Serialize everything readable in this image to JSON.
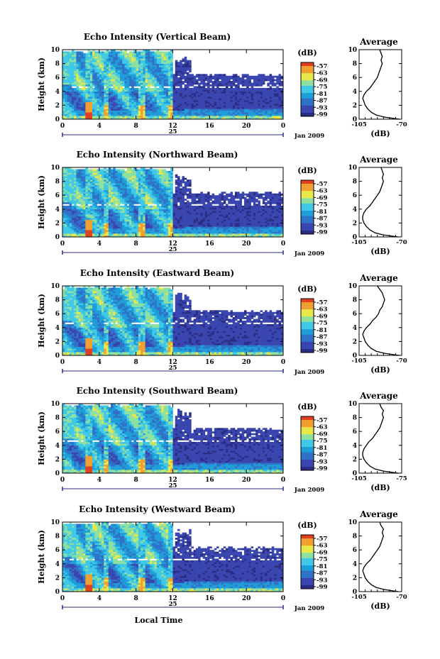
{
  "chart_data": [
    {
      "type": "heatmap",
      "title": "Echo Intensity (Vertical Beam)",
      "ylabel": "Height (km)",
      "x_ticks": [
        "0",
        "4",
        "8",
        "12",
        "16",
        "20",
        "0"
      ],
      "xlim": [
        0,
        24
      ],
      "y_ticks": [
        "0",
        "2",
        "4",
        "6",
        "8",
        "10"
      ],
      "ylim": [
        0,
        10
      ],
      "day_label": "25",
      "date_label": "Jan 2009",
      "colorbar": {
        "unit": "(dB)",
        "ticks": [
          "-57",
          "-63",
          "-69",
          "-75",
          "-81",
          "-87",
          "-93",
          "-99"
        ]
      },
      "profile": {
        "title": "Average",
        "xlabel": "(dB)",
        "x_ticks": [
          "-105",
          "-70"
        ],
        "xlim": [
          -105,
          -70
        ],
        "y_ticks": [
          "0",
          "2",
          "4",
          "6",
          "8",
          "10"
        ],
        "ylim": [
          0,
          10
        ],
        "points": [
          [
            0.0,
            -72
          ],
          [
            0.3,
            -84
          ],
          [
            0.6,
            -91
          ],
          [
            1.0,
            -95
          ],
          [
            1.5,
            -98
          ],
          [
            2.0,
            -100
          ],
          [
            2.5,
            -101
          ],
          [
            3.0,
            -102
          ],
          [
            3.5,
            -101
          ],
          [
            4.0,
            -99
          ],
          [
            4.5,
            -96
          ],
          [
            5.0,
            -94
          ],
          [
            5.5,
            -92
          ],
          [
            6.0,
            -90
          ],
          [
            6.5,
            -89
          ],
          [
            7.0,
            -88
          ],
          [
            7.5,
            -87
          ],
          [
            8.0,
            -86
          ],
          [
            8.5,
            -87
          ],
          [
            9.0,
            -86
          ],
          [
            9.5,
            -87
          ],
          [
            10.0,
            -88
          ]
        ]
      }
    },
    {
      "type": "heatmap",
      "title": "Echo Intensity (Northward Beam)",
      "ylabel": "Height (km)",
      "x_ticks": [
        "0",
        "4",
        "8",
        "12",
        "16",
        "20",
        "0"
      ],
      "xlim": [
        0,
        24
      ],
      "y_ticks": [
        "0",
        "2",
        "4",
        "6",
        "8",
        "10"
      ],
      "ylim": [
        0,
        10
      ],
      "day_label": "25",
      "date_label": "Jan 2009",
      "colorbar": {
        "unit": "(dB)",
        "ticks": [
          "-57",
          "-63",
          "-69",
          "-75",
          "-81",
          "-87",
          "-93",
          "-99"
        ]
      },
      "profile": {
        "title": "Average",
        "xlabel": "(dB)",
        "x_ticks": [
          "-105",
          "-70"
        ],
        "xlim": [
          -105,
          -70
        ],
        "y_ticks": [
          "0",
          "2",
          "4",
          "6",
          "8",
          "10"
        ],
        "ylim": [
          0,
          10
        ],
        "points": [
          [
            0.0,
            -73
          ],
          [
            0.3,
            -85
          ],
          [
            0.6,
            -92
          ],
          [
            1.0,
            -96
          ],
          [
            1.5,
            -99
          ],
          [
            2.0,
            -101
          ],
          [
            2.5,
            -102
          ],
          [
            3.0,
            -102
          ],
          [
            3.5,
            -101
          ],
          [
            4.0,
            -99
          ],
          [
            4.5,
            -96
          ],
          [
            5.0,
            -94
          ],
          [
            5.5,
            -92
          ],
          [
            6.0,
            -90
          ],
          [
            6.5,
            -88
          ],
          [
            7.0,
            -87
          ],
          [
            7.5,
            -86
          ],
          [
            8.0,
            -85
          ],
          [
            8.5,
            -86
          ],
          [
            9.0,
            -85
          ],
          [
            9.5,
            -86
          ],
          [
            10.0,
            -87
          ]
        ]
      }
    },
    {
      "type": "heatmap",
      "title": "Echo Intensity (Eastward Beam)",
      "ylabel": "Height (km)",
      "x_ticks": [
        "0",
        "4",
        "8",
        "12",
        "16",
        "20",
        "0"
      ],
      "xlim": [
        0,
        24
      ],
      "y_ticks": [
        "0",
        "2",
        "4",
        "6",
        "8",
        "10"
      ],
      "ylim": [
        0,
        10
      ],
      "day_label": "25",
      "date_label": "Jan 2009",
      "colorbar": {
        "unit": "(dB)",
        "ticks": [
          "-57",
          "-63",
          "-69",
          "-75",
          "-81",
          "-87",
          "-93",
          "-99"
        ]
      },
      "profile": {
        "title": "Average",
        "xlabel": "(dB)",
        "x_ticks": [
          "-105",
          "-70"
        ],
        "xlim": [
          -105,
          -70
        ],
        "y_ticks": [
          "0",
          "2",
          "4",
          "6",
          "8",
          "10"
        ],
        "ylim": [
          0,
          10
        ],
        "points": [
          [
            0.0,
            -72
          ],
          [
            0.3,
            -84
          ],
          [
            0.6,
            -91
          ],
          [
            1.0,
            -95
          ],
          [
            1.5,
            -98
          ],
          [
            2.0,
            -100
          ],
          [
            2.5,
            -101
          ],
          [
            3.0,
            -102
          ],
          [
            3.5,
            -101
          ],
          [
            4.0,
            -99
          ],
          [
            4.5,
            -96
          ],
          [
            5.0,
            -94
          ],
          [
            5.5,
            -91
          ],
          [
            6.0,
            -89
          ],
          [
            6.5,
            -88
          ],
          [
            7.0,
            -86
          ],
          [
            7.5,
            -85
          ],
          [
            8.0,
            -84
          ],
          [
            8.5,
            -85
          ],
          [
            9.0,
            -86
          ],
          [
            9.5,
            -88
          ],
          [
            10.0,
            -90
          ]
        ]
      }
    },
    {
      "type": "heatmap",
      "title": "Echo Intensity (Southward Beam)",
      "ylabel": "Height (km)",
      "x_ticks": [
        "0",
        "4",
        "8",
        "12",
        "16",
        "20",
        "0"
      ],
      "xlim": [
        0,
        24
      ],
      "y_ticks": [
        "0",
        "2",
        "4",
        "6",
        "8",
        "10"
      ],
      "ylim": [
        0,
        10
      ],
      "day_label": "25",
      "date_label": "Jan 2009",
      "colorbar": {
        "unit": "(dB)",
        "ticks": [
          "-57",
          "-63",
          "-69",
          "-75",
          "-81",
          "-87",
          "-93",
          "-99"
        ]
      },
      "profile": {
        "title": "Average",
        "xlabel": "(dB)",
        "x_ticks": [
          "-105",
          "-75"
        ],
        "xlim": [
          -105,
          -70
        ],
        "y_ticks": [
          "0",
          "2",
          "4",
          "6",
          "8",
          "10"
        ],
        "ylim": [
          0,
          10
        ],
        "points": [
          [
            0.0,
            -73
          ],
          [
            0.3,
            -85
          ],
          [
            0.6,
            -92
          ],
          [
            1.0,
            -96
          ],
          [
            1.5,
            -99
          ],
          [
            2.0,
            -101
          ],
          [
            2.5,
            -102
          ],
          [
            3.0,
            -102
          ],
          [
            3.5,
            -101
          ],
          [
            4.0,
            -99
          ],
          [
            4.5,
            -97
          ],
          [
            5.0,
            -94
          ],
          [
            5.5,
            -92
          ],
          [
            6.0,
            -90
          ],
          [
            6.5,
            -88
          ],
          [
            7.0,
            -87
          ],
          [
            7.5,
            -86
          ],
          [
            8.0,
            -85
          ],
          [
            8.5,
            -86
          ],
          [
            9.0,
            -85
          ],
          [
            9.5,
            -87
          ],
          [
            10.0,
            -88
          ]
        ]
      }
    },
    {
      "type": "heatmap",
      "title": "Echo Intensity (Westward Beam)",
      "ylabel": "Height (km)",
      "x_ticks": [
        "0",
        "4",
        "8",
        "12",
        "16",
        "20",
        "0"
      ],
      "xlim": [
        0,
        24
      ],
      "y_ticks": [
        "0",
        "2",
        "4",
        "6",
        "8",
        "10"
      ],
      "ylim": [
        0,
        10
      ],
      "day_label": "25",
      "date_label": "Jan 2009",
      "xlabel": "Local Time",
      "colorbar": {
        "unit": "(dB)",
        "ticks": [
          "-57",
          "-63",
          "-69",
          "-75",
          "-81",
          "-87",
          "-93",
          "-99"
        ]
      },
      "profile": {
        "title": "Average",
        "xlabel": "(dB)",
        "x_ticks": [
          "-105",
          "-70"
        ],
        "xlim": [
          -105,
          -70
        ],
        "y_ticks": [
          "0",
          "2",
          "4",
          "6",
          "8",
          "10"
        ],
        "ylim": [
          0,
          10
        ],
        "points": [
          [
            0.0,
            -73
          ],
          [
            0.3,
            -84
          ],
          [
            0.6,
            -91
          ],
          [
            1.0,
            -95
          ],
          [
            1.5,
            -98
          ],
          [
            2.0,
            -100
          ],
          [
            2.5,
            -101
          ],
          [
            3.0,
            -102
          ],
          [
            3.5,
            -101
          ],
          [
            4.0,
            -99
          ],
          [
            4.5,
            -96
          ],
          [
            5.0,
            -94
          ],
          [
            5.5,
            -92
          ],
          [
            6.0,
            -90
          ],
          [
            6.5,
            -88
          ],
          [
            7.0,
            -87
          ],
          [
            7.5,
            -86
          ],
          [
            8.0,
            -85
          ],
          [
            8.5,
            -86
          ],
          [
            9.0,
            -85
          ],
          [
            9.5,
            -87
          ],
          [
            10.0,
            -88
          ]
        ]
      }
    }
  ],
  "colors": {
    "scale": [
      "#2b2d84",
      "#3a46b0",
      "#2f72c8",
      "#1f9ed8",
      "#3fc8e8",
      "#8ee0a0",
      "#e8e84a",
      "#f0a030",
      "#e04020"
    ],
    "axis": "#000000",
    "time_bar": "#2b2d84"
  }
}
